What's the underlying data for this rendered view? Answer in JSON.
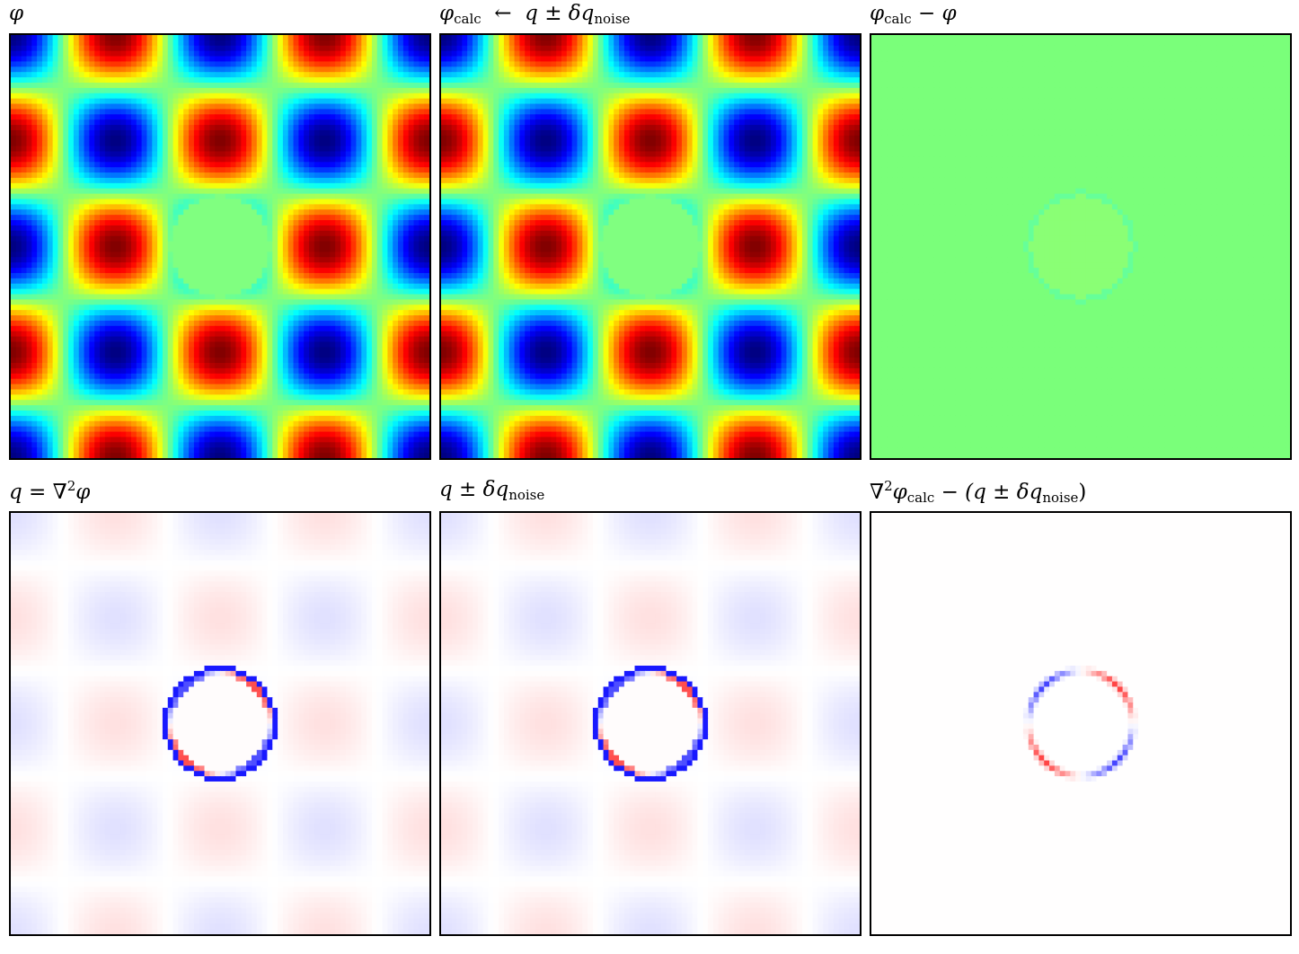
{
  "chart_data": [
    {
      "type": "heatmap",
      "title": {
        "main": "φ",
        "sub": "",
        "sup": "",
        "rest": ""
      },
      "colormap": "jet",
      "field": "phi",
      "period": 2,
      "hole": {
        "cx": 0,
        "cy": 0,
        "r": 0.48,
        "inner_value": 0
      },
      "xlim": [
        -2,
        2
      ],
      "ylim": [
        -2,
        2
      ]
    },
    {
      "type": "heatmap",
      "title": {
        "main": "φ",
        "sub": "calc",
        "sup": "",
        "rest": "  ←  q ± δq",
        "rest_sub": "noise"
      },
      "colormap": "jet",
      "field": "phi_calc",
      "period": 2,
      "hole": {
        "cx": 0,
        "cy": 0,
        "r": 0.48,
        "inner_value": 0
      },
      "xlim": [
        -2,
        2
      ],
      "ylim": [
        -2,
        2
      ]
    },
    {
      "type": "heatmap",
      "title": {
        "main": "φ",
        "sub": "calc",
        "sup": "",
        "rest": " − φ"
      },
      "colormap": "jet",
      "field": "phi_error",
      "uniform_color": "#7aff7a",
      "hole": {
        "cx": 0,
        "cy": 0,
        "r": 0.48
      },
      "xlim": [
        -2,
        2
      ],
      "ylim": [
        -2,
        2
      ]
    },
    {
      "type": "heatmap",
      "title": {
        "main": "q = ∇",
        "sub": "",
        "sup": "2",
        "rest": "φ"
      },
      "colormap": "bwr",
      "field": "q",
      "hole": {
        "cx": 0,
        "cy": 0,
        "r": 0.5
      },
      "xlim": [
        -2,
        2
      ],
      "ylim": [
        -2,
        2
      ]
    },
    {
      "type": "heatmap",
      "title": {
        "main": "q ± δq",
        "sub": "noise",
        "sup": "",
        "rest": ""
      },
      "colormap": "bwr",
      "field": "q_noise",
      "hole": {
        "cx": 0,
        "cy": 0,
        "r": 0.5
      },
      "xlim": [
        -2,
        2
      ],
      "ylim": [
        -2,
        2
      ]
    },
    {
      "type": "heatmap",
      "title": {
        "main": "∇",
        "sub": "",
        "sup": "2",
        "rest": "φ",
        "rest_sub": "calc",
        "rest2": " − (q ± δq",
        "rest2_sub": "noise",
        "rest3": ")"
      },
      "colormap": "bwr",
      "field": "residual",
      "hole": {
        "cx": 0,
        "cy": 0,
        "r": 0.5
      },
      "xlim": [
        -2,
        2
      ],
      "ylim": [
        -2,
        2
      ]
    }
  ]
}
